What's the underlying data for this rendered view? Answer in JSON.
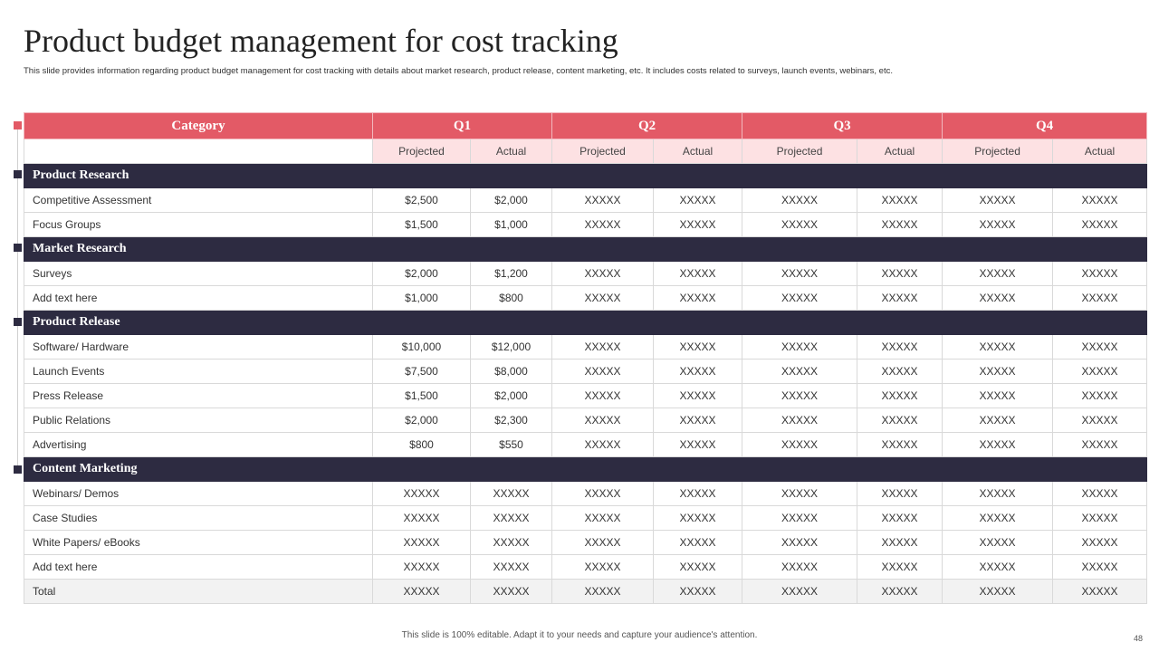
{
  "title": "Product budget management for cost tracking",
  "subtitle": "This slide provides information regarding product budget management  for cost tracking with details about market research, product release, content marketing, etc. It includes costs related to surveys, launch events, webinars, etc.",
  "table": {
    "category_header": "Category",
    "quarters": [
      "Q1",
      "Q2",
      "Q3",
      "Q4"
    ],
    "subheaders": [
      "Projected",
      "Actual",
      "Projected",
      "Actual",
      "Projected",
      "Actual",
      "Projected",
      "Actual"
    ],
    "sections": [
      {
        "name": "Product Research",
        "rows": [
          {
            "label": "Competitive Assessment",
            "values": [
              "$2,500",
              "$2,000",
              "XXXXX",
              "XXXXX",
              "XXXXX",
              "XXXXX",
              "XXXXX",
              "XXXXX"
            ]
          },
          {
            "label": "Focus Groups",
            "values": [
              "$1,500",
              "$1,000",
              "XXXXX",
              "XXXXX",
              "XXXXX",
              "XXXXX",
              "XXXXX",
              "XXXXX"
            ]
          }
        ]
      },
      {
        "name": "Market Research",
        "rows": [
          {
            "label": "Surveys",
            "values": [
              "$2,000",
              "$1,200",
              "XXXXX",
              "XXXXX",
              "XXXXX",
              "XXXXX",
              "XXXXX",
              "XXXXX"
            ]
          },
          {
            "label": "Add text here",
            "values": [
              "$1,000",
              "$800",
              "XXXXX",
              "XXXXX",
              "XXXXX",
              "XXXXX",
              "XXXXX",
              "XXXXX"
            ]
          }
        ]
      },
      {
        "name": "Product Release",
        "rows": [
          {
            "label": "Software/ Hardware",
            "values": [
              "$10,000",
              "$12,000",
              "XXXXX",
              "XXXXX",
              "XXXXX",
              "XXXXX",
              "XXXXX",
              "XXXXX"
            ]
          },
          {
            "label": "Launch Events",
            "values": [
              "$7,500",
              "$8,000",
              "XXXXX",
              "XXXXX",
              "XXXXX",
              "XXXXX",
              "XXXXX",
              "XXXXX"
            ]
          },
          {
            "label": "Press Release",
            "values": [
              "$1,500",
              "$2,000",
              "XXXXX",
              "XXXXX",
              "XXXXX",
              "XXXXX",
              "XXXXX",
              "XXXXX"
            ]
          },
          {
            "label": "Public Relations",
            "values": [
              "$2,000",
              "$2,300",
              "XXXXX",
              "XXXXX",
              "XXXXX",
              "XXXXX",
              "XXXXX",
              "XXXXX"
            ]
          },
          {
            "label": "Advertising",
            "values": [
              "$800",
              "$550",
              "XXXXX",
              "XXXXX",
              "XXXXX",
              "XXXXX",
              "XXXXX",
              "XXXXX"
            ]
          }
        ]
      },
      {
        "name": "Content Marketing",
        "rows": [
          {
            "label": "Webinars/ Demos",
            "values": [
              "XXXXX",
              "XXXXX",
              "XXXXX",
              "XXXXX",
              "XXXXX",
              "XXXXX",
              "XXXXX",
              "XXXXX"
            ]
          },
          {
            "label": "Case Studies",
            "values": [
              "XXXXX",
              "XXXXX",
              "XXXXX",
              "XXXXX",
              "XXXXX",
              "XXXXX",
              "XXXXX",
              "XXXXX"
            ]
          },
          {
            "label": "White Papers/ eBooks",
            "values": [
              "XXXXX",
              "XXXXX",
              "XXXXX",
              "XXXXX",
              "XXXXX",
              "XXXXX",
              "XXXXX",
              "XXXXX"
            ]
          },
          {
            "label": "Add text here",
            "values": [
              "XXXXX",
              "XXXXX",
              "XXXXX",
              "XXXXX",
              "XXXXX",
              "XXXXX",
              "XXXXX",
              "XXXXX"
            ]
          }
        ]
      }
    ],
    "total": {
      "label": "Total",
      "values": [
        "XXXXX",
        "XXXXX",
        "XXXXX",
        "XXXXX",
        "XXXXX",
        "XXXXX",
        "XXXXX",
        "XXXXX"
      ]
    }
  },
  "footer": "This slide is 100% editable. Adapt it to your needs and capture your audience's attention.",
  "page_number": "48",
  "colors": {
    "accent": "#e35a66",
    "section_bg": "#2d2b41",
    "subheader_bg": "#fde1e3"
  }
}
